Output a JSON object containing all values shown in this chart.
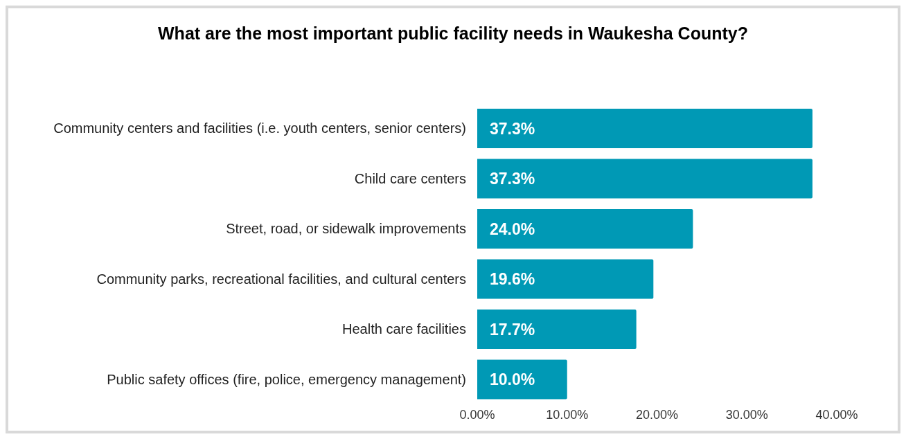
{
  "chart_data": {
    "type": "bar",
    "orientation": "horizontal",
    "title": "What are the most important public facility needs in Waukesha County?",
    "categories": [
      "Community centers and facilities (i.e. youth centers, senior centers)",
      "Child care centers",
      "Street, road, or sidewalk improvements",
      "Community parks, recreational facilities, and cultural centers",
      "Health care facilities",
      "Public safety offices (fire, police, emergency management)"
    ],
    "values": [
      37.3,
      37.3,
      24.0,
      19.6,
      17.7,
      10.0
    ],
    "value_labels": [
      "37.3%",
      "37.3%",
      "24.0%",
      "19.6%",
      "17.7%",
      "10.0%"
    ],
    "color": "#0099b5",
    "xlim": [
      0,
      40
    ],
    "xticks": [
      {
        "value": 0,
        "label": "0.00%"
      },
      {
        "value": 10,
        "label": "10.00%"
      },
      {
        "value": 20,
        "label": "20.00%"
      },
      {
        "value": 30,
        "label": "30.00%"
      },
      {
        "value": 40,
        "label": "40.00%"
      }
    ],
    "grid": false
  }
}
